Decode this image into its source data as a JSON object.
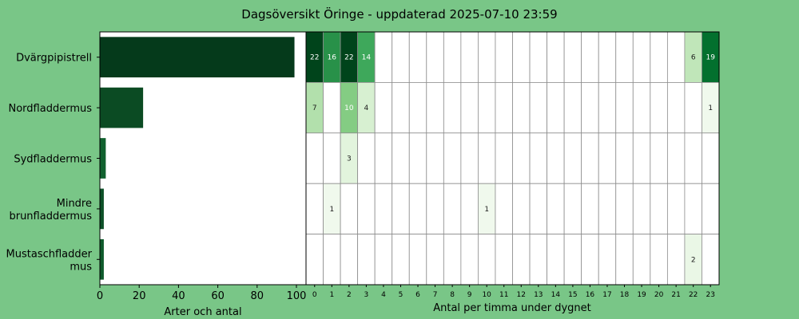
{
  "chart_data": [
    {
      "type": "bar",
      "orientation": "horizontal",
      "title": "Dagsöversikt Öringe - uppdaterad 2025-07-10 23:59",
      "xlabel": "Arter och antal",
      "xlim": [
        0,
        100
      ],
      "xticks": [
        "0",
        "20",
        "40",
        "60",
        "80",
        "100"
      ],
      "categories": [
        "Dvärgpipistrell",
        "Nordfladdermus",
        "Sydfladdermus",
        "Mindre brunfladdermus",
        "Mustaschfladdermus"
      ],
      "category_labels": [
        [
          "Dvärgpipistrell"
        ],
        [
          "Nordfladdermus"
        ],
        [
          "Sydfladdermus"
        ],
        [
          "Mindre",
          "brunfladdermus"
        ],
        [
          "Mustaschfladder",
          "mus"
        ]
      ],
      "values": [
        99,
        22,
        3,
        2,
        2
      ],
      "colors": [
        "#053a1b",
        "#0b4b23",
        "#11612f",
        "#0d5128",
        "#0f5b2c"
      ]
    },
    {
      "type": "heatmap",
      "xlabel": "Antal per timma under dygnet",
      "hours": [
        "0",
        "1",
        "2",
        "3",
        "4",
        "5",
        "6",
        "7",
        "8",
        "9",
        "10",
        "11",
        "12",
        "13",
        "14",
        "15",
        "16",
        "17",
        "18",
        "19",
        "20",
        "21",
        "22",
        "23"
      ],
      "highlight_hour": "23",
      "highlight_color": "#ffff33",
      "rows": [
        [
          22,
          16,
          22,
          14,
          0,
          0,
          0,
          0,
          0,
          0,
          0,
          0,
          0,
          0,
          0,
          0,
          0,
          0,
          0,
          0,
          0,
          0,
          6,
          19
        ],
        [
          7,
          0,
          10,
          4,
          0,
          0,
          0,
          0,
          0,
          0,
          0,
          0,
          0,
          0,
          0,
          0,
          0,
          0,
          0,
          0,
          0,
          0,
          0,
          1
        ],
        [
          0,
          0,
          3,
          0,
          0,
          0,
          0,
          0,
          0,
          0,
          0,
          0,
          0,
          0,
          0,
          0,
          0,
          0,
          0,
          0,
          0,
          0,
          0,
          0
        ],
        [
          0,
          1,
          0,
          0,
          0,
          0,
          0,
          0,
          0,
          0,
          1,
          0,
          0,
          0,
          0,
          0,
          0,
          0,
          0,
          0,
          0,
          0,
          0,
          0
        ],
        [
          0,
          0,
          0,
          0,
          0,
          0,
          0,
          0,
          0,
          0,
          0,
          0,
          0,
          0,
          0,
          0,
          0,
          0,
          0,
          0,
          0,
          0,
          2,
          0
        ]
      ],
      "colorscale": "Greens"
    }
  ]
}
